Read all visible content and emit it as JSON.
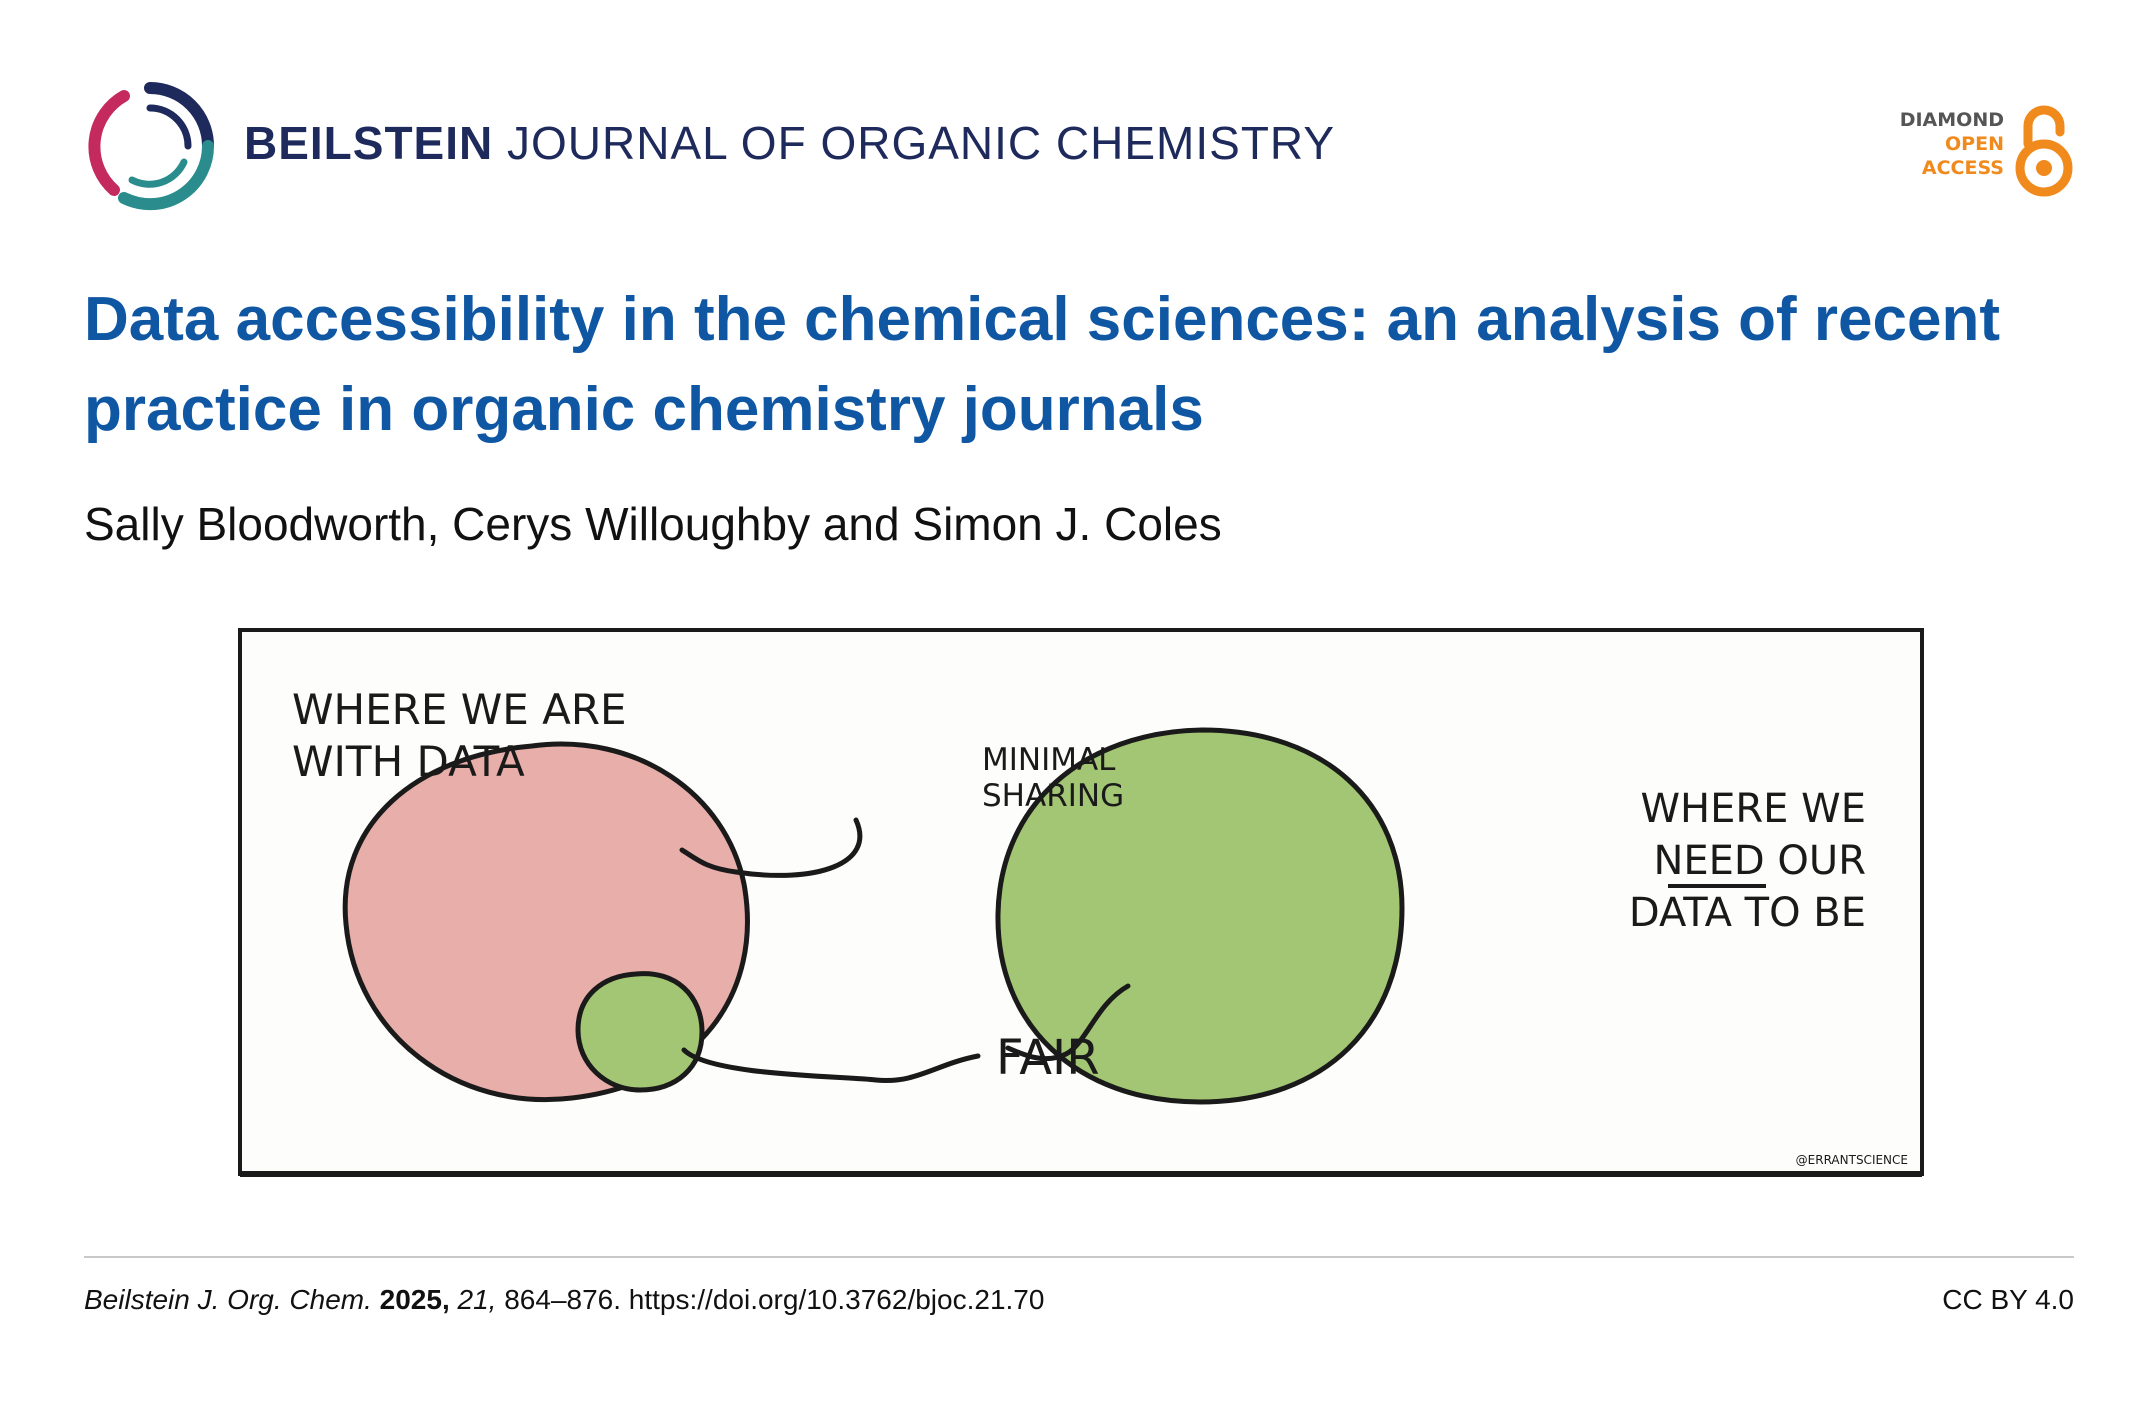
{
  "header": {
    "journal_bold": "BEILSTEIN",
    "journal_rest": "JOURNAL OF ORGANIC CHEMISTRY",
    "logo_icon": "beilstein-ring-logo",
    "open_access": {
      "line1": "DIAMOND",
      "line2": "OPEN",
      "line3": "ACCESS",
      "icon": "open-access-lock-icon",
      "color": "#f08a1d"
    }
  },
  "article": {
    "title": "Data accessibility in the chemical sciences: an analysis of recent practice in organic chemistry journals",
    "authors": "Sally Bloodworth, Cerys Willoughby and Simon J. Coles"
  },
  "figure": {
    "left_label_line1": "WHERE WE ARE",
    "left_label_line2": "WITH DATA",
    "minimal_line1": "MINIMAL",
    "minimal_line2": "SHARING",
    "fair_label": "FAIR",
    "right_label_line1": "WHERE WE",
    "right_label_line2_underlined": "NEED",
    "right_label_line2_rest": " OUR",
    "right_label_line3": "DATA TO BE",
    "credit": "@ERRANTSCIENCE",
    "colors": {
      "pink": "#e8aeaa",
      "green": "#a3c674",
      "ink": "#1a1a1a"
    }
  },
  "footer": {
    "journal_abbr": "Beilstein J. Org. Chem.",
    "year": "2025,",
    "volume": "21,",
    "pages_doi": "864–876. https://doi.org/10.3762/bjoc.21.70",
    "license": "CC BY 4.0"
  }
}
